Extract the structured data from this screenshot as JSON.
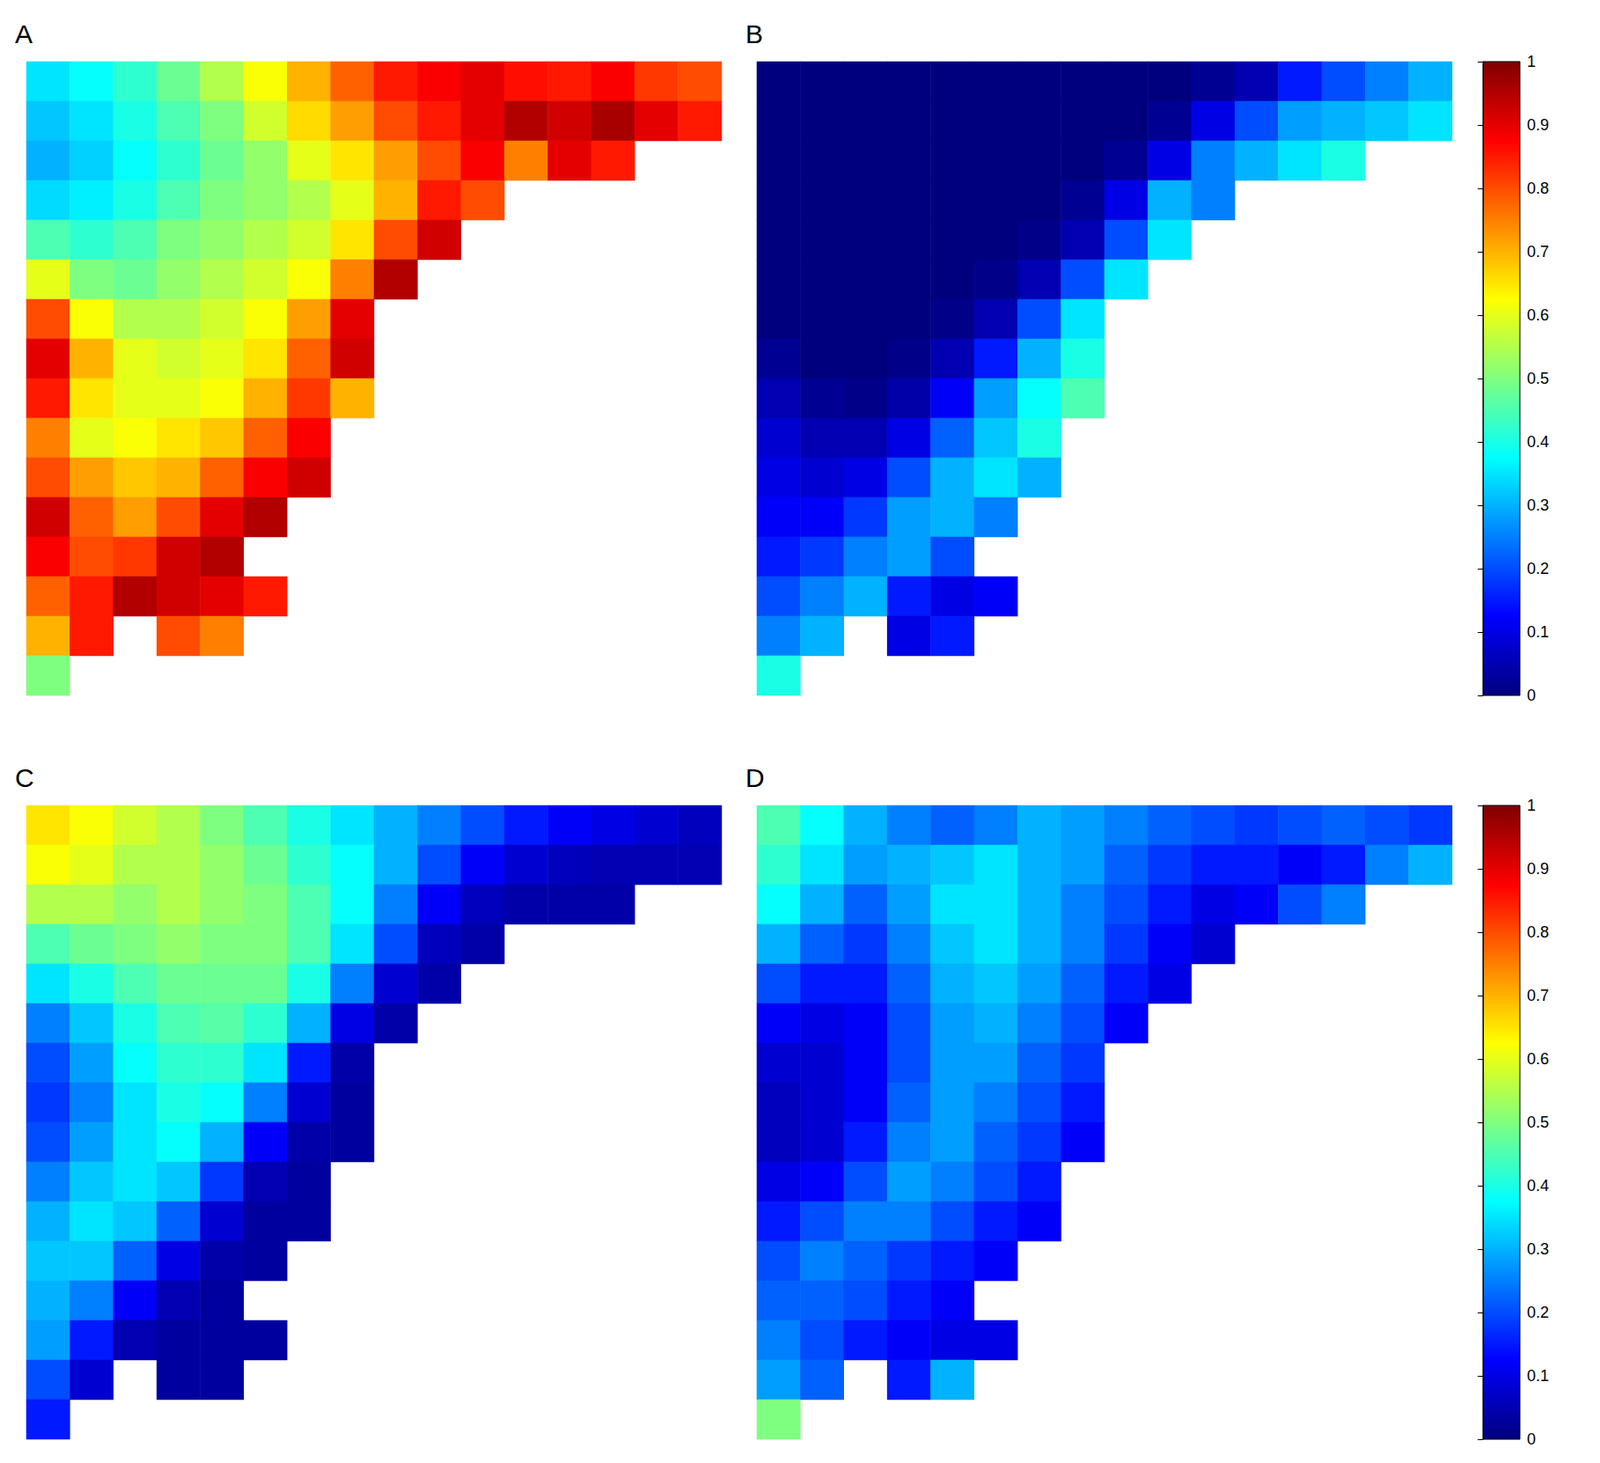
{
  "chart_data": [
    {
      "type": "heatmap",
      "title": "A",
      "tick_labels": false,
      "cells": [
        [
          0.35,
          0.38,
          0.42,
          0.48,
          0.55,
          0.62,
          0.7,
          0.78,
          0.85,
          0.88,
          0.9,
          0.86,
          0.85,
          0.88,
          0.82,
          0.8
        ],
        [
          0.32,
          0.35,
          0.4,
          0.45,
          0.5,
          0.58,
          0.66,
          0.72,
          0.8,
          0.85,
          0.9,
          0.95,
          0.92,
          0.96,
          0.9,
          0.85
        ],
        [
          0.3,
          0.33,
          0.38,
          0.42,
          0.48,
          0.52,
          0.6,
          0.65,
          0.72,
          0.8,
          0.88,
          0.75,
          0.9,
          0.85,
          null,
          null
        ],
        [
          0.34,
          0.36,
          0.4,
          0.45,
          0.5,
          0.52,
          0.55,
          0.6,
          0.7,
          0.85,
          0.8,
          null,
          null,
          null,
          null,
          null
        ],
        [
          0.45,
          0.42,
          0.45,
          0.5,
          0.52,
          0.55,
          0.58,
          0.65,
          0.8,
          0.92,
          null,
          null,
          null,
          null,
          null,
          null
        ],
        [
          0.6,
          0.5,
          0.48,
          0.52,
          0.55,
          0.58,
          0.62,
          0.75,
          0.95,
          null,
          null,
          null,
          null,
          null,
          null,
          null
        ],
        [
          0.8,
          0.62,
          0.55,
          0.55,
          0.58,
          0.62,
          0.72,
          0.9,
          null,
          null,
          null,
          null,
          null,
          null,
          null,
          null
        ],
        [
          0.9,
          0.7,
          0.6,
          0.58,
          0.6,
          0.65,
          0.78,
          0.92,
          null,
          null,
          null,
          null,
          null,
          null,
          null,
          null
        ],
        [
          0.85,
          0.65,
          0.6,
          0.6,
          0.62,
          0.7,
          0.82,
          0.7,
          null,
          null,
          null,
          null,
          null,
          null,
          null,
          null
        ],
        [
          0.75,
          0.6,
          0.62,
          0.65,
          0.68,
          0.78,
          0.88,
          null,
          null,
          null,
          null,
          null,
          null,
          null,
          null,
          null
        ],
        [
          0.8,
          0.72,
          0.68,
          0.7,
          0.78,
          0.88,
          0.92,
          null,
          null,
          null,
          null,
          null,
          null,
          null,
          null,
          null
        ],
        [
          0.92,
          0.78,
          0.72,
          0.8,
          0.9,
          0.95,
          null,
          null,
          null,
          null,
          null,
          null,
          null,
          null,
          null,
          null
        ],
        [
          0.88,
          0.8,
          0.82,
          0.92,
          0.95,
          null,
          null,
          null,
          null,
          null,
          null,
          null,
          null,
          null,
          null,
          null
        ],
        [
          0.78,
          0.85,
          0.95,
          0.92,
          0.9,
          0.85,
          null,
          null,
          null,
          null,
          null,
          null,
          null,
          null,
          null,
          null
        ],
        [
          0.7,
          0.85,
          null,
          0.8,
          0.75,
          null,
          null,
          null,
          null,
          null,
          null,
          null,
          null,
          null,
          null,
          null
        ],
        [
          0.5,
          null,
          null,
          null,
          null,
          null,
          null,
          null,
          null,
          null,
          null,
          null,
          null,
          null,
          null,
          null
        ]
      ]
    },
    {
      "type": "heatmap",
      "title": "B",
      "tick_labels": false,
      "colorbar_range": [
        0,
        1
      ],
      "colorbar_ticks": [
        0,
        0.1,
        0.2,
        0.3,
        0.4,
        0.5,
        0.6,
        0.7,
        0.8,
        0.9,
        1
      ],
      "cells": [
        [
          0,
          0,
          0,
          0,
          0,
          0,
          0,
          0,
          0,
          0,
          0.02,
          0.05,
          0.15,
          0.2,
          0.25,
          0.3
        ],
        [
          0,
          0,
          0,
          0,
          0,
          0,
          0,
          0,
          0,
          0.02,
          0.1,
          0.2,
          0.28,
          0.3,
          0.32,
          0.35
        ],
        [
          0,
          0,
          0,
          0,
          0,
          0,
          0,
          0,
          0.02,
          0.1,
          0.25,
          0.3,
          0.35,
          0.4,
          null,
          null
        ],
        [
          0,
          0,
          0,
          0,
          0,
          0,
          0,
          0.02,
          0.1,
          0.3,
          0.25,
          null,
          null,
          null,
          null,
          null
        ],
        [
          0,
          0,
          0,
          0,
          0,
          0,
          0.01,
          0.05,
          0.2,
          0.35,
          null,
          null,
          null,
          null,
          null,
          null
        ],
        [
          0,
          0,
          0,
          0,
          0,
          0.01,
          0.05,
          0.2,
          0.35,
          null,
          null,
          null,
          null,
          null,
          null,
          null
        ],
        [
          0,
          0,
          0,
          0,
          0.01,
          0.05,
          0.2,
          0.35,
          null,
          null,
          null,
          null,
          null,
          null,
          null,
          null
        ],
        [
          0.02,
          0,
          0,
          0.01,
          0.05,
          0.15,
          0.3,
          0.4,
          null,
          null,
          null,
          null,
          null,
          null,
          null,
          null
        ],
        [
          0.05,
          0.02,
          0.01,
          0.04,
          0.12,
          0.28,
          0.38,
          0.45,
          null,
          null,
          null,
          null,
          null,
          null,
          null,
          null
        ],
        [
          0.08,
          0.05,
          0.05,
          0.1,
          0.22,
          0.32,
          0.4,
          null,
          null,
          null,
          null,
          null,
          null,
          null,
          null,
          null
        ],
        [
          0.1,
          0.08,
          0.1,
          0.2,
          0.3,
          0.35,
          0.3,
          null,
          null,
          null,
          null,
          null,
          null,
          null,
          null,
          null
        ],
        [
          0.12,
          0.12,
          0.18,
          0.28,
          0.3,
          0.25,
          null,
          null,
          null,
          null,
          null,
          null,
          null,
          null,
          null,
          null
        ],
        [
          0.15,
          0.18,
          0.25,
          0.28,
          0.2,
          null,
          null,
          null,
          null,
          null,
          null,
          null,
          null,
          null,
          null,
          null
        ],
        [
          0.2,
          0.25,
          0.3,
          0.15,
          0.1,
          0.12,
          null,
          null,
          null,
          null,
          null,
          null,
          null,
          null,
          null,
          null
        ],
        [
          0.25,
          0.3,
          null,
          0.1,
          0.15,
          null,
          null,
          null,
          null,
          null,
          null,
          null,
          null,
          null,
          null,
          null
        ],
        [
          0.4,
          null,
          null,
          null,
          null,
          null,
          null,
          null,
          null,
          null,
          null,
          null,
          null,
          null,
          null,
          null
        ]
      ]
    },
    {
      "type": "heatmap",
      "title": "C",
      "tick_labels": false,
      "cells": [
        [
          0.65,
          0.62,
          0.58,
          0.55,
          0.5,
          0.45,
          0.4,
          0.35,
          0.3,
          0.25,
          0.2,
          0.15,
          0.12,
          0.1,
          0.08,
          0.06
        ],
        [
          0.62,
          0.6,
          0.55,
          0.55,
          0.52,
          0.48,
          0.42,
          0.38,
          0.3,
          0.2,
          0.12,
          0.08,
          0.06,
          0.05,
          0.05,
          0.05
        ],
        [
          0.55,
          0.55,
          0.52,
          0.55,
          0.52,
          0.5,
          0.45,
          0.38,
          0.25,
          0.12,
          0.06,
          0.04,
          0.04,
          0.04,
          null,
          null
        ],
        [
          0.45,
          0.48,
          0.5,
          0.52,
          0.5,
          0.5,
          0.45,
          0.35,
          0.2,
          0.06,
          0.04,
          null,
          null,
          null,
          null,
          null
        ],
        [
          0.35,
          0.4,
          0.45,
          0.48,
          0.48,
          0.48,
          0.4,
          0.25,
          0.08,
          0.04,
          null,
          null,
          null,
          null,
          null,
          null
        ],
        [
          0.25,
          0.32,
          0.4,
          0.45,
          0.46,
          0.42,
          0.3,
          0.1,
          0.04,
          null,
          null,
          null,
          null,
          null,
          null,
          null
        ],
        [
          0.2,
          0.28,
          0.38,
          0.42,
          0.42,
          0.35,
          0.15,
          0.04,
          null,
          null,
          null,
          null,
          null,
          null,
          null,
          null
        ],
        [
          0.18,
          0.25,
          0.35,
          0.4,
          0.38,
          0.25,
          0.08,
          0.03,
          null,
          null,
          null,
          null,
          null,
          null,
          null,
          null
        ],
        [
          0.2,
          0.28,
          0.35,
          0.38,
          0.3,
          0.12,
          0.04,
          0.03,
          null,
          null,
          null,
          null,
          null,
          null,
          null,
          null
        ],
        [
          0.25,
          0.32,
          0.35,
          0.32,
          0.18,
          0.05,
          0.03,
          null,
          null,
          null,
          null,
          null,
          null,
          null,
          null,
          null
        ],
        [
          0.3,
          0.35,
          0.32,
          0.22,
          0.08,
          0.03,
          0.03,
          null,
          null,
          null,
          null,
          null,
          null,
          null,
          null,
          null
        ],
        [
          0.32,
          0.32,
          0.22,
          0.1,
          0.04,
          0.03,
          null,
          null,
          null,
          null,
          null,
          null,
          null,
          null,
          null,
          null
        ],
        [
          0.3,
          0.25,
          0.12,
          0.05,
          0.03,
          null,
          null,
          null,
          null,
          null,
          null,
          null,
          null,
          null,
          null,
          null
        ],
        [
          0.28,
          0.15,
          0.05,
          0.03,
          0.03,
          0.03,
          null,
          null,
          null,
          null,
          null,
          null,
          null,
          null,
          null,
          null
        ],
        [
          0.2,
          0.08,
          null,
          0.03,
          0.03,
          null,
          null,
          null,
          null,
          null,
          null,
          null,
          null,
          null,
          null,
          null
        ],
        [
          0.15,
          null,
          null,
          null,
          null,
          null,
          null,
          null,
          null,
          null,
          null,
          null,
          null,
          null,
          null,
          null
        ]
      ]
    },
    {
      "type": "heatmap",
      "title": "D",
      "tick_labels": false,
      "colorbar_range": [
        0,
        1
      ],
      "colorbar_ticks": [
        0,
        0.1,
        0.2,
        0.3,
        0.4,
        0.5,
        0.6,
        0.7,
        0.8,
        0.9,
        1
      ],
      "cells": [
        [
          0.45,
          0.38,
          0.3,
          0.25,
          0.22,
          0.25,
          0.3,
          0.28,
          0.25,
          0.22,
          0.2,
          0.18,
          0.2,
          0.22,
          0.2,
          0.18
        ],
        [
          0.42,
          0.35,
          0.28,
          0.3,
          0.32,
          0.35,
          0.3,
          0.28,
          0.22,
          0.18,
          0.15,
          0.15,
          0.12,
          0.15,
          0.25,
          0.3
        ],
        [
          0.38,
          0.3,
          0.22,
          0.28,
          0.35,
          0.35,
          0.3,
          0.25,
          0.2,
          0.15,
          0.1,
          0.12,
          0.2,
          0.25,
          null,
          null
        ],
        [
          0.3,
          0.22,
          0.18,
          0.25,
          0.32,
          0.35,
          0.3,
          0.25,
          0.18,
          0.12,
          0.08,
          null,
          null,
          null,
          null,
          null
        ],
        [
          0.2,
          0.15,
          0.15,
          0.22,
          0.3,
          0.32,
          0.28,
          0.22,
          0.15,
          0.1,
          null,
          null,
          null,
          null,
          null,
          null
        ],
        [
          0.12,
          0.1,
          0.12,
          0.2,
          0.28,
          0.3,
          0.25,
          0.2,
          0.12,
          null,
          null,
          null,
          null,
          null,
          null,
          null
        ],
        [
          0.08,
          0.08,
          0.12,
          0.2,
          0.28,
          0.28,
          0.22,
          0.18,
          null,
          null,
          null,
          null,
          null,
          null,
          null,
          null
        ],
        [
          0.06,
          0.08,
          0.12,
          0.22,
          0.28,
          0.25,
          0.2,
          0.15,
          null,
          null,
          null,
          null,
          null,
          null,
          null,
          null
        ],
        [
          0.06,
          0.08,
          0.15,
          0.25,
          0.28,
          0.22,
          0.18,
          0.12,
          null,
          null,
          null,
          null,
          null,
          null,
          null,
          null
        ],
        [
          0.1,
          0.12,
          0.2,
          0.28,
          0.25,
          0.2,
          0.15,
          null,
          null,
          null,
          null,
          null,
          null,
          null,
          null,
          null
        ],
        [
          0.15,
          0.2,
          0.25,
          0.25,
          0.2,
          0.15,
          0.12,
          null,
          null,
          null,
          null,
          null,
          null,
          null,
          null,
          null
        ],
        [
          0.2,
          0.25,
          0.22,
          0.18,
          0.15,
          0.12,
          null,
          null,
          null,
          null,
          null,
          null,
          null,
          null,
          null,
          null
        ],
        [
          0.22,
          0.22,
          0.2,
          0.15,
          0.12,
          null,
          null,
          null,
          null,
          null,
          null,
          null,
          null,
          null,
          null,
          null
        ],
        [
          0.25,
          0.2,
          0.15,
          0.12,
          0.1,
          0.1,
          null,
          null,
          null,
          null,
          null,
          null,
          null,
          null,
          null,
          null
        ],
        [
          0.28,
          0.22,
          null,
          0.15,
          0.3,
          null,
          null,
          null,
          null,
          null,
          null,
          null,
          null,
          null,
          null,
          null
        ],
        [
          0.5,
          null,
          null,
          null,
          null,
          null,
          null,
          null,
          null,
          null,
          null,
          null,
          null,
          null,
          null,
          null
        ]
      ]
    }
  ]
}
